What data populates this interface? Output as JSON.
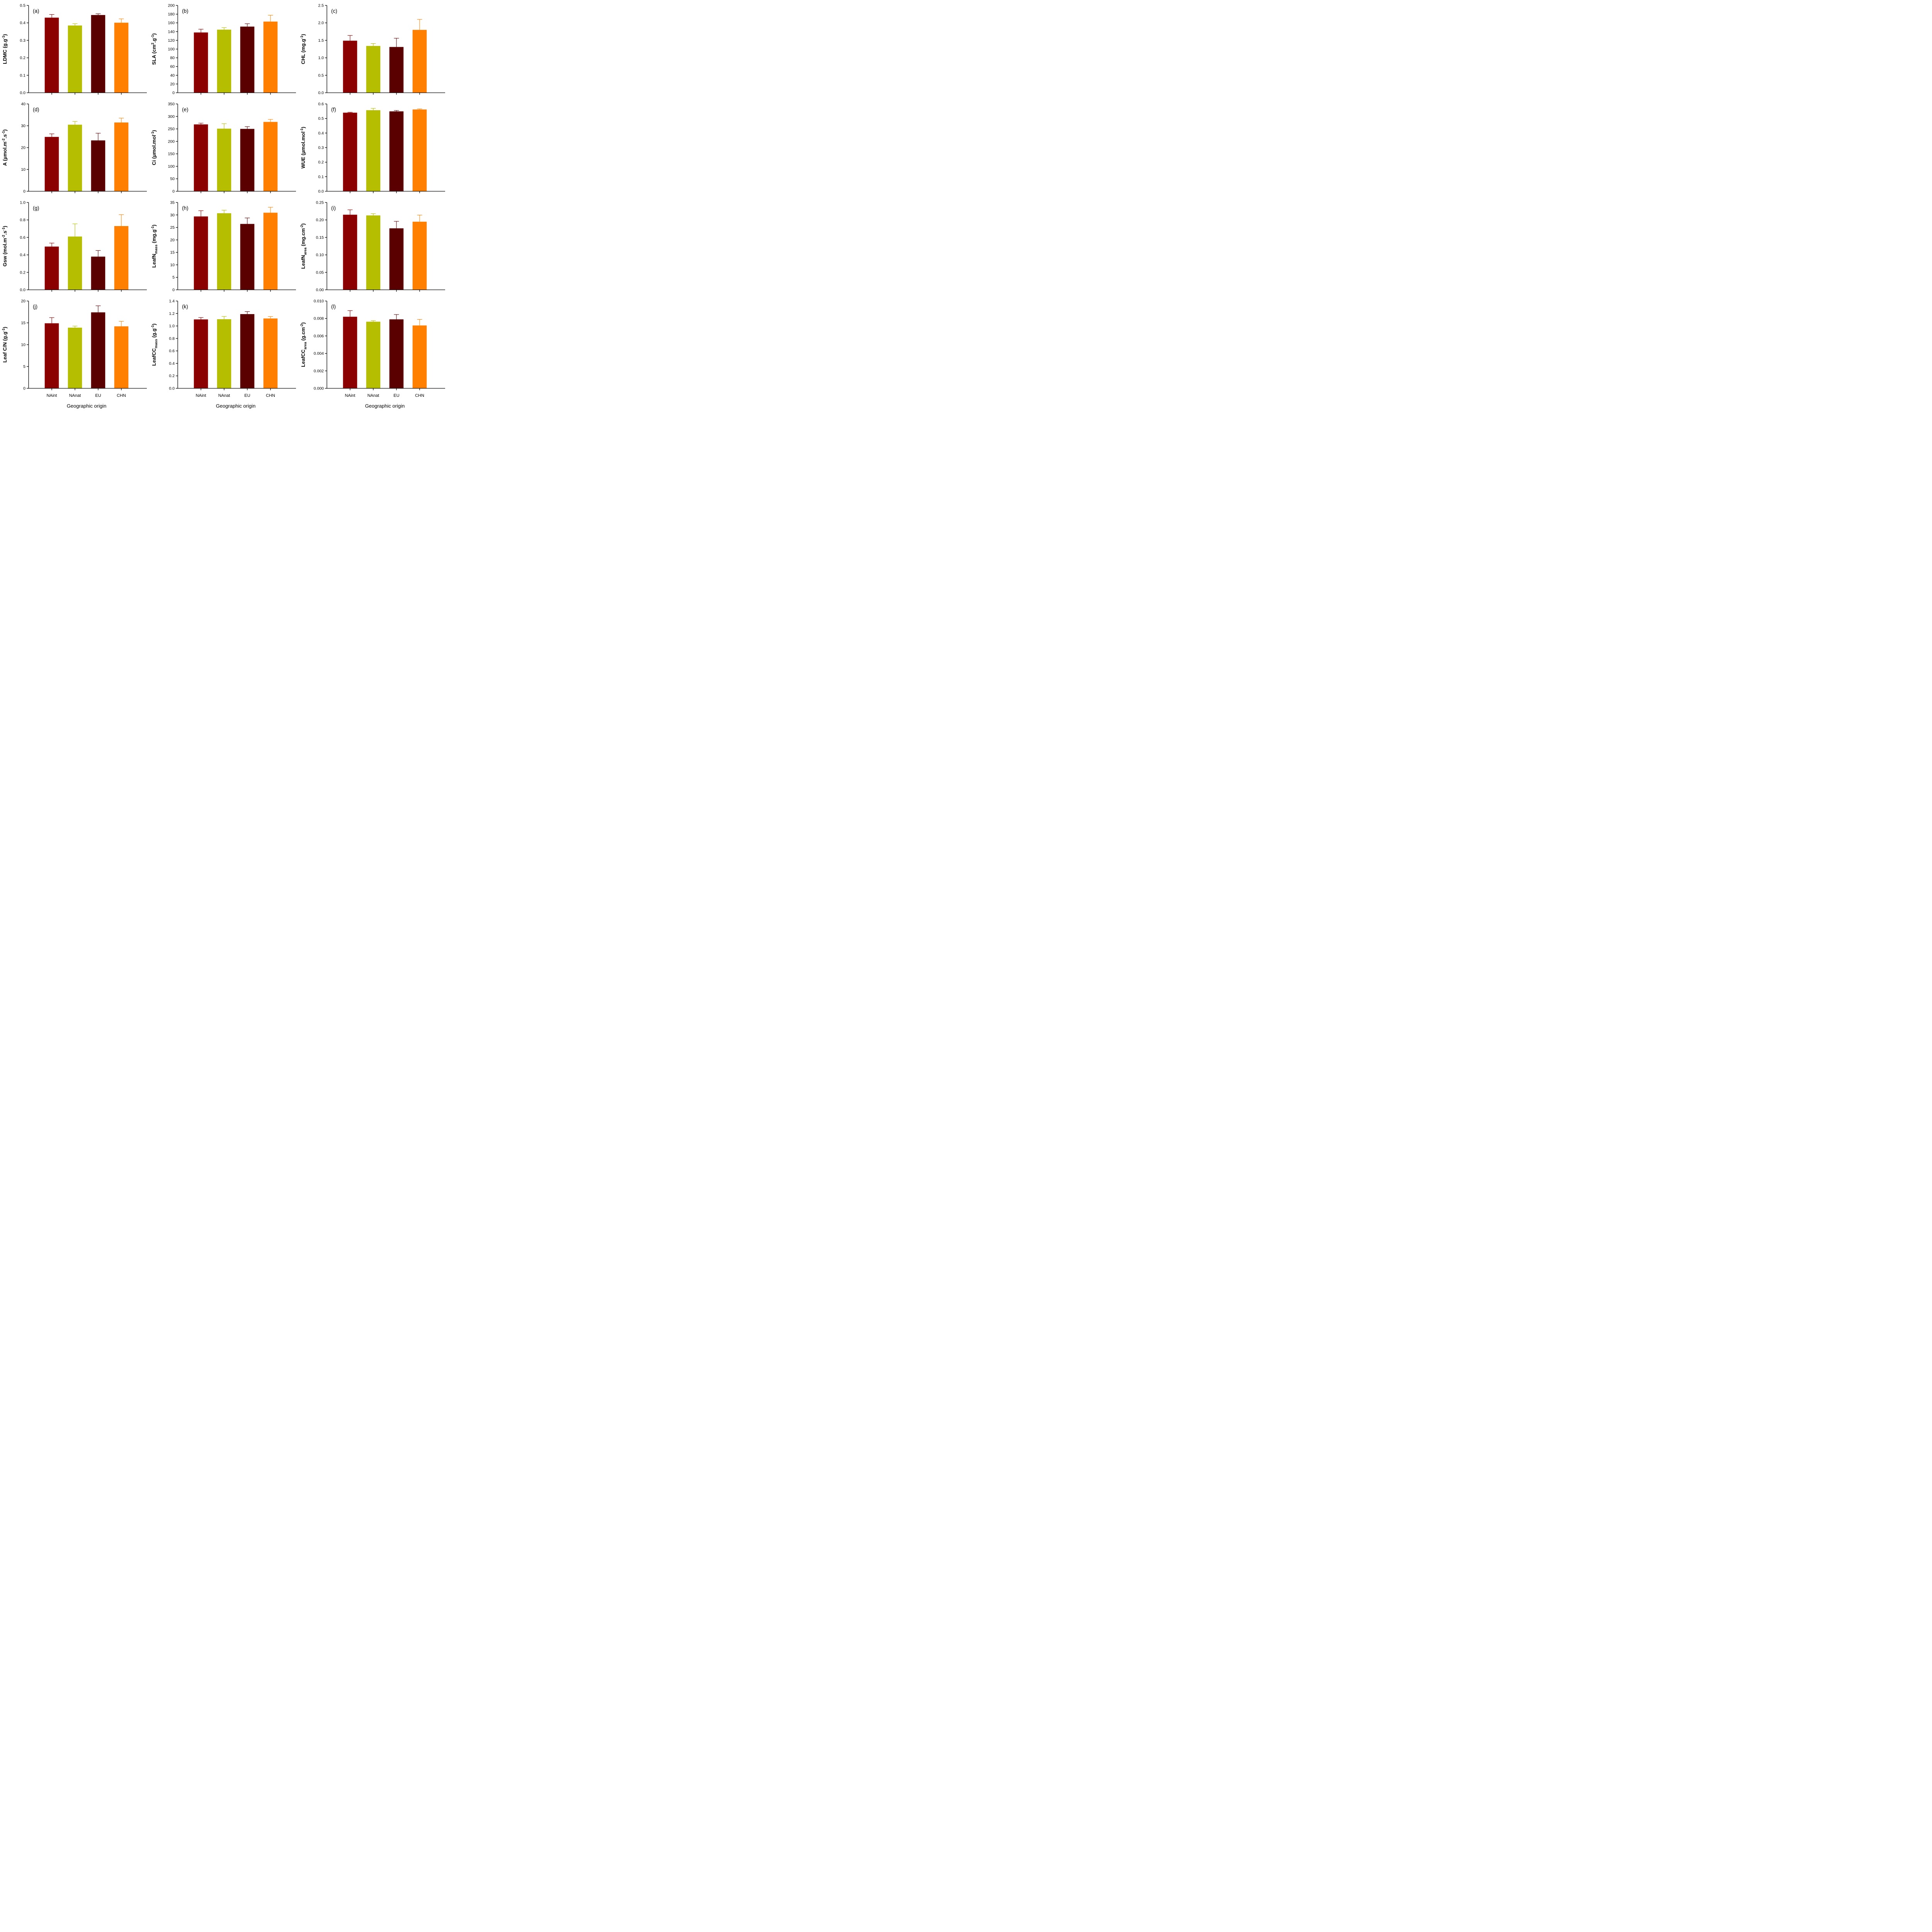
{
  "figure": {
    "x_axis_title": "Geographic origin",
    "categories": [
      "NAint",
      "NAnat",
      "EU",
      "CHN"
    ],
    "bar_colors": [
      "#8B0000",
      "#B5BE00",
      "#5A0000",
      "#FF8000"
    ],
    "axis_color": "#000000",
    "background_color": "#FFFFFF"
  },
  "chart_data": [
    {
      "type": "bar",
      "panel_label": "(a)",
      "ylabel": "LDMC (g.g-1)",
      "ylabel_segments": [
        {
          "t": "LDMC (g.g"
        },
        {
          "t": "-1",
          "s": "sup"
        },
        {
          "t": ")"
        }
      ],
      "ylim": [
        0,
        0.5
      ],
      "ytick_step": 0.1,
      "tick_decimals": 1,
      "values": [
        0.43,
        0.385,
        0.445,
        0.401
      ],
      "errors": [
        0.018,
        0.01,
        0.007,
        0.022
      ]
    },
    {
      "type": "bar",
      "panel_label": "(b)",
      "ylabel": "SLA (cm2.g-1)",
      "ylabel_segments": [
        {
          "t": "SLA (cm"
        },
        {
          "t": "2",
          "s": "sup"
        },
        {
          "t": ".g"
        },
        {
          "t": "-1",
          "s": "sup"
        },
        {
          "t": ")"
        }
      ],
      "ylim": [
        0,
        200
      ],
      "ytick_step": 20,
      "tick_decimals": 0,
      "values": [
        138,
        144.5,
        151.5,
        163
      ],
      "errors": [
        7.5,
        4.5,
        6.5,
        14.5
      ]
    },
    {
      "type": "bar",
      "panel_label": "(c)",
      "ylabel": "CHL (mg.g-1)",
      "ylabel_segments": [
        {
          "t": "CHL (mg.g"
        },
        {
          "t": "-1",
          "s": "sup"
        },
        {
          "t": ")"
        }
      ],
      "ylim": [
        0,
        2.5
      ],
      "ytick_step": 0.5,
      "tick_decimals": 1,
      "values": [
        1.49,
        1.34,
        1.31,
        1.8
      ],
      "errors": [
        0.15,
        0.07,
        0.25,
        0.3
      ]
    },
    {
      "type": "bar",
      "panel_label": "(d)",
      "ylabel": "A (µmol.m-2.s-1)",
      "ylabel_segments": [
        {
          "t": "A (µmol.m"
        },
        {
          "t": "-2",
          "s": "sup"
        },
        {
          "t": ".s"
        },
        {
          "t": "-1",
          "s": "sup"
        },
        {
          "t": ")"
        }
      ],
      "ylim": [
        0,
        40
      ],
      "ytick_step": 10,
      "tick_decimals": 0,
      "values": [
        24.9,
        30.5,
        23.3,
        31.5
      ],
      "errors": [
        1.4,
        1.5,
        3.3,
        2.0
      ]
    },
    {
      "type": "bar",
      "panel_label": "(e)",
      "ylabel": "Ci (µmol.mol-1)",
      "ylabel_segments": [
        {
          "t": "Ci (µmol.mol"
        },
        {
          "t": "-1",
          "s": "sup"
        },
        {
          "t": ")"
        }
      ],
      "ylim": [
        0,
        350
      ],
      "ytick_step": 50,
      "tick_decimals": 0,
      "values": [
        268,
        251,
        250,
        278
      ],
      "errors": [
        5,
        20,
        9,
        10
      ]
    },
    {
      "type": "bar",
      "panel_label": "(f)",
      "ylabel": "WUE (µmol.mol-1)",
      "ylabel_segments": [
        {
          "t": "WUE (µmol.mol"
        },
        {
          "t": "-1",
          "s": "sup"
        },
        {
          "t": ")"
        }
      ],
      "ylim": [
        0,
        0.6
      ],
      "ytick_step": 0.1,
      "tick_decimals": 1,
      "values": [
        0.54,
        0.557,
        0.549,
        0.562
      ],
      "errors": [
        0.003,
        0.013,
        0.006,
        0.004
      ]
    },
    {
      "type": "bar",
      "panel_label": "(g)",
      "ylabel": "Gsw (mol.m-2.s-1)",
      "ylabel_segments": [
        {
          "t": "Gsw (mol.m"
        },
        {
          "t": "-2",
          "s": "sup"
        },
        {
          "t": ".s"
        },
        {
          "t": "-1",
          "s": "sup"
        },
        {
          "t": ")"
        }
      ],
      "ylim": [
        0,
        1.0
      ],
      "ytick_step": 0.2,
      "tick_decimals": 1,
      "values": [
        0.495,
        0.61,
        0.38,
        0.73
      ],
      "errors": [
        0.04,
        0.145,
        0.07,
        0.13
      ]
    },
    {
      "type": "bar",
      "panel_label": "(h)",
      "ylabel": "LeafNmass (mg.g-1)",
      "ylabel_segments": [
        {
          "t": "LeafN"
        },
        {
          "t": "mass",
          "s": "sub"
        },
        {
          "t": " (mg.g"
        },
        {
          "t": "-1",
          "s": "sup"
        },
        {
          "t": ")"
        }
      ],
      "ylim": [
        0,
        35
      ],
      "ytick_step": 5,
      "tick_decimals": 0,
      "values": [
        29.4,
        30.7,
        26.4,
        30.9
      ],
      "errors": [
        2.3,
        1.2,
        2.4,
        2.2
      ]
    },
    {
      "type": "bar",
      "panel_label": "(i)",
      "ylabel": "LeafNarea (mg.cm-2)",
      "ylabel_segments": [
        {
          "t": "LeafN"
        },
        {
          "t": "area",
          "s": "sub"
        },
        {
          "t": " (mg.cm"
        },
        {
          "t": "-2",
          "s": "sup"
        },
        {
          "t": ")"
        }
      ],
      "ylim": [
        0,
        0.25
      ],
      "ytick_step": 0.05,
      "tick_decimals": 2,
      "values": [
        0.215,
        0.213,
        0.176,
        0.195
      ],
      "errors": [
        0.014,
        0.005,
        0.02,
        0.019
      ]
    },
    {
      "type": "bar",
      "panel_label": "(j)",
      "ylabel": "Leaf C/N (g.g-1)",
      "ylabel_segments": [
        {
          "t": "Leaf C/N (g.g"
        },
        {
          "t": "-1",
          "s": "sup"
        },
        {
          "t": ")"
        }
      ],
      "ylim": [
        0,
        20
      ],
      "ytick_step": 5,
      "tick_decimals": 0,
      "values": [
        14.9,
        13.9,
        17.4,
        14.2
      ],
      "errors": [
        1.3,
        0.35,
        1.5,
        1.15
      ]
    },
    {
      "type": "bar",
      "panel_label": "(k)",
      "ylabel": "LeafCCmass (g.g-1)",
      "ylabel_segments": [
        {
          "t": "LeafCC"
        },
        {
          "t": "mass",
          "s": "sub"
        },
        {
          "t": " (g.g"
        },
        {
          "t": "-1",
          "s": "sup"
        },
        {
          "t": ")"
        }
      ],
      "ylim": [
        0,
        1.4
      ],
      "ytick_step": 0.2,
      "tick_decimals": 1,
      "values": [
        1.105,
        1.108,
        1.19,
        1.12
      ],
      "errors": [
        0.03,
        0.045,
        0.04,
        0.03
      ]
    },
    {
      "type": "bar",
      "panel_label": "(l)",
      "ylabel": "LeafCCarea (g.cm-2)",
      "ylabel_segments": [
        {
          "t": "LeafCC"
        },
        {
          "t": "area",
          "s": "sub"
        },
        {
          "t": " (g.cm"
        },
        {
          "t": "-2",
          "s": "sup"
        },
        {
          "t": ")"
        }
      ],
      "ylim": [
        0,
        0.01
      ],
      "ytick_step": 0.002,
      "tick_decimals": 3,
      "values": [
        0.0082,
        0.00763,
        0.0079,
        0.0072
      ],
      "errors": [
        0.0007,
        0.00012,
        0.00055,
        0.0007
      ]
    }
  ]
}
